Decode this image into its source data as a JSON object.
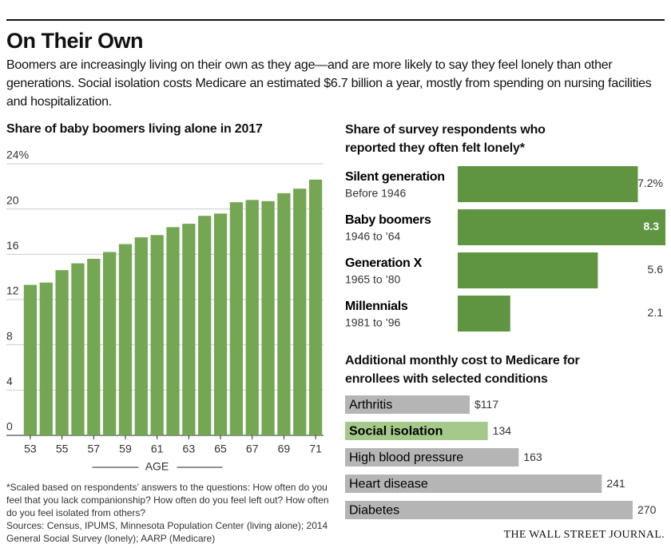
{
  "header": {
    "title": "On Their Own",
    "description": "Boomers are increasingly living on their own as they age—and are more likely to say they feel lonely than other generations. Social isolation costs Medicare an estimated $6.7 billion a year, mostly from spending on nursing facilities and hospitalization."
  },
  "chart_data": [
    {
      "type": "bar",
      "title": "Share of baby boomers living alone in 2017",
      "x_label": "AGE",
      "categories": [
        "53",
        null,
        "55",
        null,
        "57",
        null,
        "59",
        null,
        "61",
        null,
        "63",
        null,
        "65",
        null,
        "67",
        null,
        "69",
        null,
        "71"
      ],
      "values": [
        13.3,
        13.5,
        14.6,
        15.2,
        15.6,
        16.2,
        16.9,
        17.5,
        17.7,
        18.4,
        18.7,
        19.4,
        19.6,
        20.6,
        20.8,
        20.7,
        21.4,
        21.8,
        22.6
      ],
      "color": "#74a653",
      "ylim": [
        0,
        24
      ],
      "yticks": [
        {
          "value": 24,
          "label": "24%"
        },
        20,
        16,
        12,
        8,
        4,
        0
      ],
      "grid": true
    },
    {
      "type": "hbar",
      "title": "Share of survey respondents who reported they often felt lonely*",
      "categories": [
        "Silent generation",
        "Baby boomers",
        "Generation X",
        "Millennials"
      ],
      "subcategories": [
        "Before 1946",
        "1946 to ’64",
        "1965 to ’80",
        "1981 to ’96"
      ],
      "values": [
        7.2,
        8.3,
        5.6,
        2.1
      ],
      "value_labels": [
        "7.2%",
        "8.3",
        "5.6",
        "2.1"
      ],
      "color": "#5f9441"
    },
    {
      "type": "hbar",
      "title": "Additional monthly cost to Medicare for enrollees with selected conditions",
      "categories": [
        "Arthritis",
        "Social isolation",
        "High blood pressure",
        "Heart disease",
        "Diabetes"
      ],
      "values": [
        117,
        134,
        163,
        241,
        270
      ],
      "value_labels": [
        "$117",
        "134",
        "163",
        "241",
        "270"
      ],
      "colors": [
        "#b5b5b5",
        "#a5c98a",
        "#b5b5b5",
        "#b5b5b5",
        "#b5b5b5"
      ]
    }
  ],
  "footnote": "*Scaled based on respondents’ answers to the questions: How often do you feel that you lack companionship? How often do you feel left out? How often do you feel isolated from others?",
  "sources": "Sources: Census, IPUMS, Minnesota Population Center (living alone); 2014 General Social Survey (lonely); AARP (Medicare)",
  "logo": "THE WALL STREET JOURNAL."
}
